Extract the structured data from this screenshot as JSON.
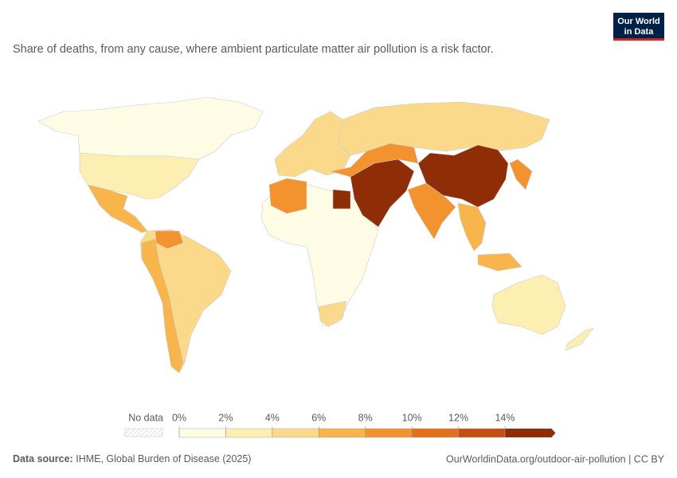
{
  "header": {
    "subtitle": "Share of deaths, from any cause, where ambient particulate matter air pollution is a risk factor.",
    "logo": [
      "Our World",
      "in Data"
    ]
  },
  "legend": {
    "no_data": "No data",
    "ticks": [
      {
        "value": 0,
        "label": "0%"
      },
      {
        "value": 2,
        "label": "2%"
      },
      {
        "value": 4,
        "label": "4%"
      },
      {
        "value": 6,
        "label": "6%"
      },
      {
        "value": 8,
        "label": "8%"
      },
      {
        "value": 10,
        "label": "10%"
      },
      {
        "value": 12,
        "label": "12%"
      },
      {
        "value": 14,
        "label": "14%"
      }
    ],
    "colors": [
      "#fffce6",
      "#fdefb2",
      "#fbd98b",
      "#f7b54c",
      "#f3932f",
      "#e4701e",
      "#c64f10",
      "#8e2d06"
    ]
  },
  "footer": {
    "source_label": "Data source:",
    "source": "IHME, Global Burden of Disease (2025)",
    "url": "OurWorldinData.org/outdoor-air-pollution | CC BY"
  }
}
